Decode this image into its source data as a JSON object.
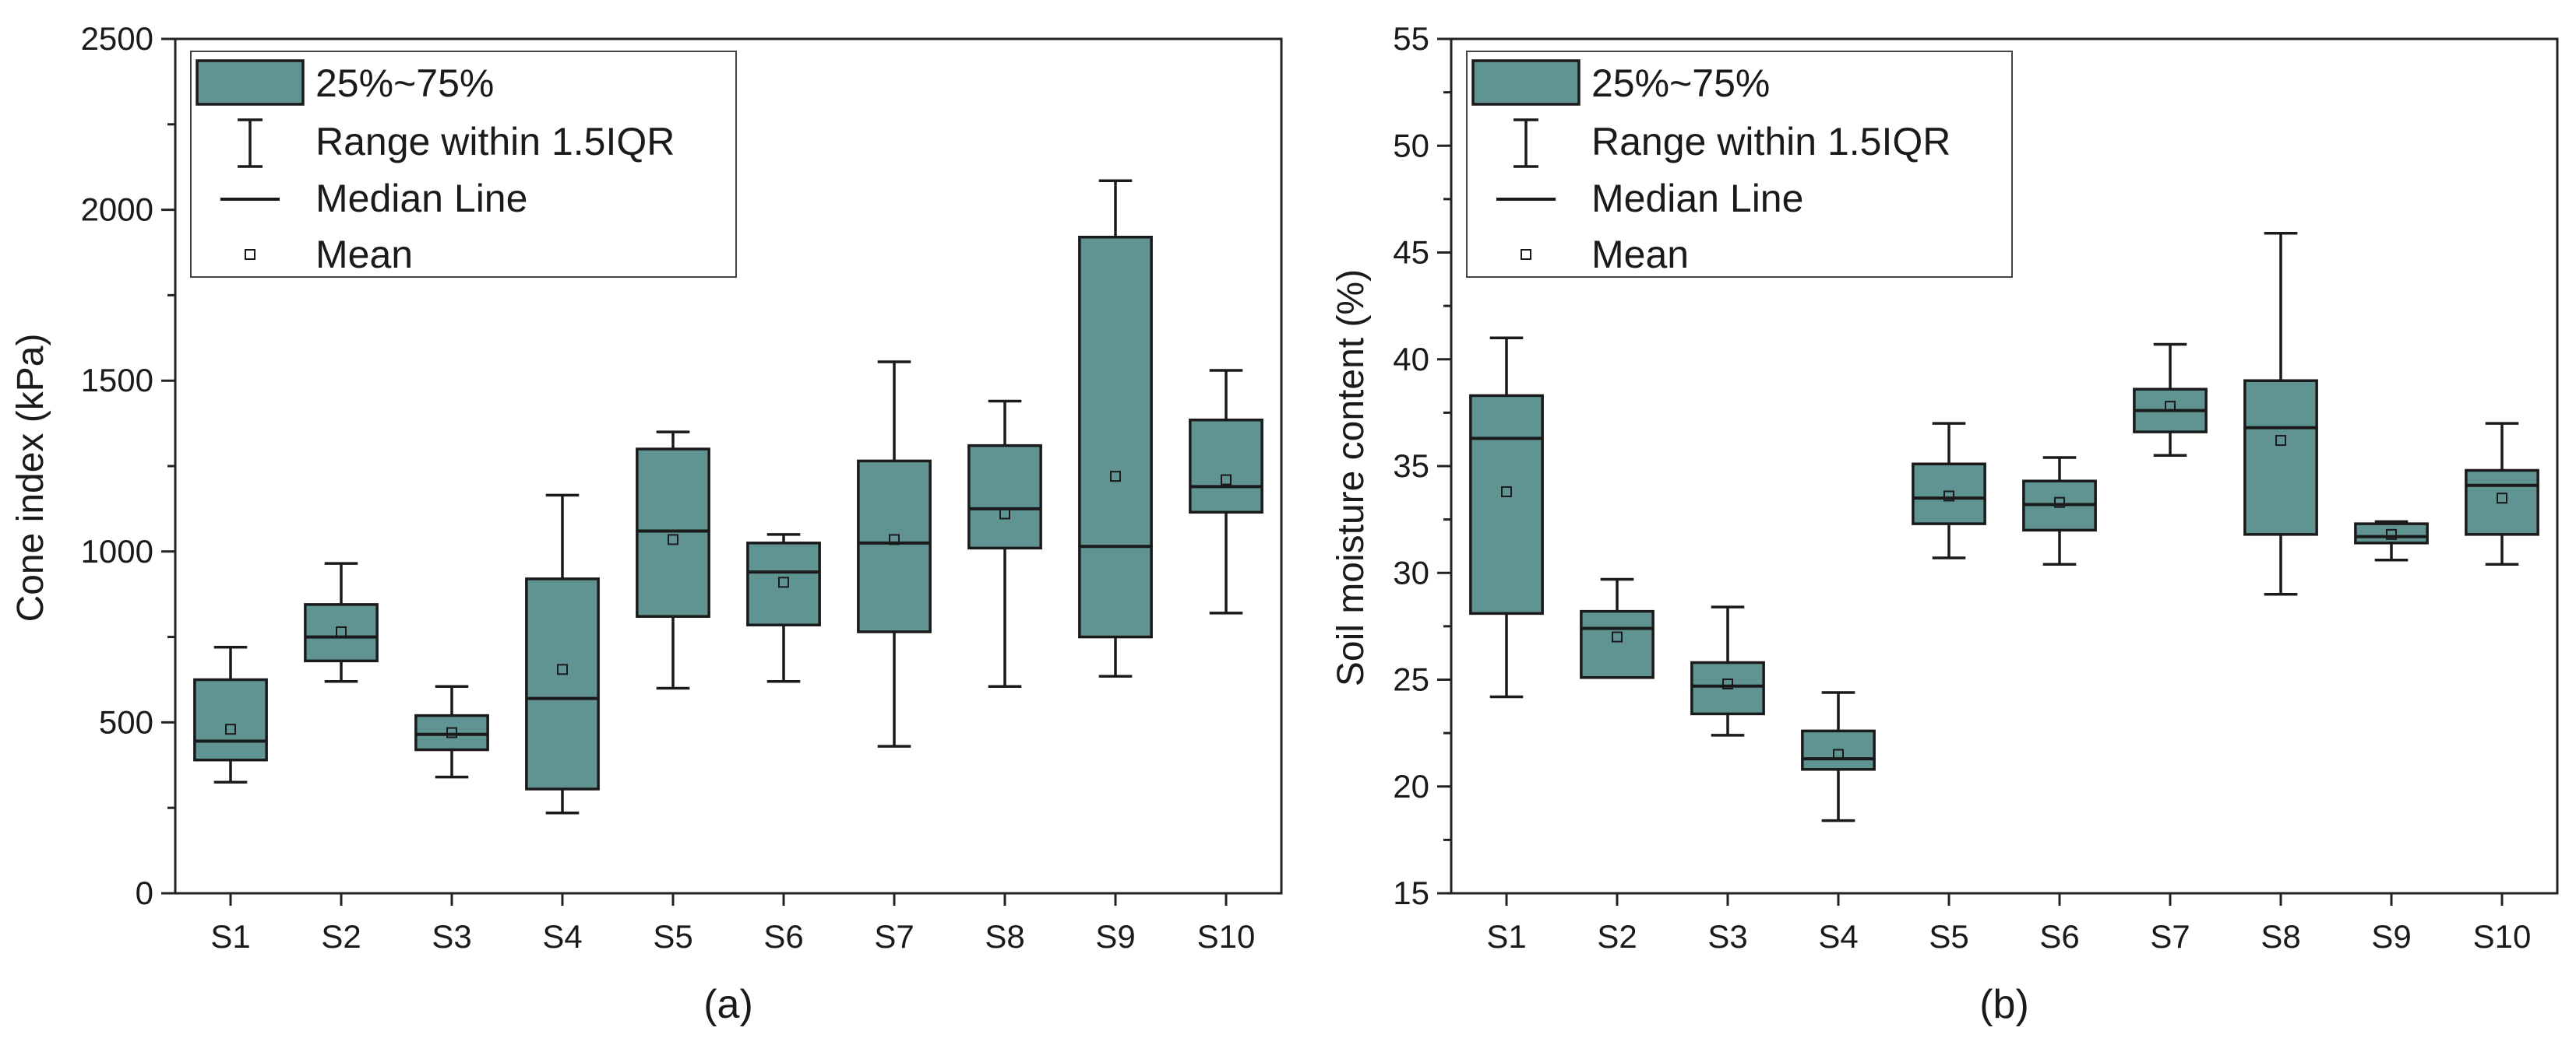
{
  "legend": {
    "box_label": "25%~75%",
    "range_label": "Range within 1.5IQR",
    "median_label": "Median Line",
    "mean_label": "Mean"
  },
  "colors": {
    "box_fill": "#5f9493",
    "line": "#1a1a1a"
  },
  "chart_data": [
    {
      "type": "box",
      "panel_label": "(a)",
      "ylabel": "Cone index (kPa)",
      "xlabel": "",
      "ylim": [
        0,
        2500
      ],
      "yticks": [
        0,
        500,
        1000,
        1500,
        2000,
        2500
      ],
      "categories": [
        "S1",
        "S2",
        "S3",
        "S4",
        "S5",
        "S6",
        "S7",
        "S8",
        "S9",
        "S10"
      ],
      "boxes": [
        {
          "whisker_low": 325,
          "q1": 390,
          "median": 445,
          "q3": 625,
          "whisker_high": 720,
          "mean": 480
        },
        {
          "whisker_low": 620,
          "q1": 680,
          "median": 750,
          "q3": 845,
          "whisker_high": 965,
          "mean": 765
        },
        {
          "whisker_low": 340,
          "q1": 420,
          "median": 465,
          "q3": 520,
          "whisker_high": 605,
          "mean": 470
        },
        {
          "whisker_low": 235,
          "q1": 305,
          "median": 570,
          "q3": 920,
          "whisker_high": 1165,
          "mean": 655
        },
        {
          "whisker_low": 600,
          "q1": 810,
          "median": 1060,
          "q3": 1300,
          "whisker_high": 1350,
          "mean": 1035
        },
        {
          "whisker_low": 620,
          "q1": 785,
          "median": 940,
          "q3": 1025,
          "whisker_high": 1050,
          "mean": 910
        },
        {
          "whisker_low": 430,
          "q1": 765,
          "median": 1025,
          "q3": 1265,
          "whisker_high": 1555,
          "mean": 1035
        },
        {
          "whisker_low": 605,
          "q1": 1010,
          "median": 1125,
          "q3": 1310,
          "whisker_high": 1440,
          "mean": 1110
        },
        {
          "whisker_low": 635,
          "q1": 750,
          "median": 1015,
          "q3": 1920,
          "whisker_high": 2085,
          "mean": 1220
        },
        {
          "whisker_low": 820,
          "q1": 1115,
          "median": 1190,
          "q3": 1385,
          "whisker_high": 1530,
          "mean": 1210
        }
      ]
    },
    {
      "type": "box",
      "panel_label": "(b)",
      "ylabel": "Soil moisture content (%)",
      "xlabel": "",
      "ylim": [
        15,
        55
      ],
      "yticks": [
        15,
        20,
        25,
        30,
        35,
        40,
        45,
        50,
        55
      ],
      "categories": [
        "S1",
        "S2",
        "S3",
        "S4",
        "S5",
        "S6",
        "S7",
        "S8",
        "S9",
        "S10"
      ],
      "boxes": [
        {
          "whisker_low": 24.2,
          "q1": 28.1,
          "median": 36.3,
          "q3": 38.3,
          "whisker_high": 41.0,
          "mean": 33.8
        },
        {
          "whisker_low": 25.1,
          "q1": 25.1,
          "median": 27.4,
          "q3": 28.2,
          "whisker_high": 29.7,
          "mean": 27.0
        },
        {
          "whisker_low": 22.4,
          "q1": 23.4,
          "median": 24.7,
          "q3": 25.8,
          "whisker_high": 28.4,
          "mean": 24.8
        },
        {
          "whisker_low": 18.4,
          "q1": 20.8,
          "median": 21.3,
          "q3": 22.6,
          "whisker_high": 24.4,
          "mean": 21.5
        },
        {
          "whisker_low": 30.7,
          "q1": 32.3,
          "median": 33.5,
          "q3": 35.1,
          "whisker_high": 37.0,
          "mean": 33.6
        },
        {
          "whisker_low": 30.4,
          "q1": 32.0,
          "median": 33.2,
          "q3": 34.3,
          "whisker_high": 35.4,
          "mean": 33.3
        },
        {
          "whisker_low": 35.5,
          "q1": 36.6,
          "median": 37.6,
          "q3": 38.6,
          "whisker_high": 40.7,
          "mean": 37.8
        },
        {
          "whisker_low": 29.0,
          "q1": 31.8,
          "median": 36.8,
          "q3": 39.0,
          "whisker_high": 45.9,
          "mean": 36.2
        },
        {
          "whisker_low": 30.6,
          "q1": 31.4,
          "median": 31.7,
          "q3": 32.3,
          "whisker_high": 32.4,
          "mean": 31.8
        },
        {
          "whisker_low": 30.4,
          "q1": 31.8,
          "median": 34.1,
          "q3": 34.8,
          "whisker_high": 37.0,
          "mean": 33.5
        }
      ]
    }
  ]
}
